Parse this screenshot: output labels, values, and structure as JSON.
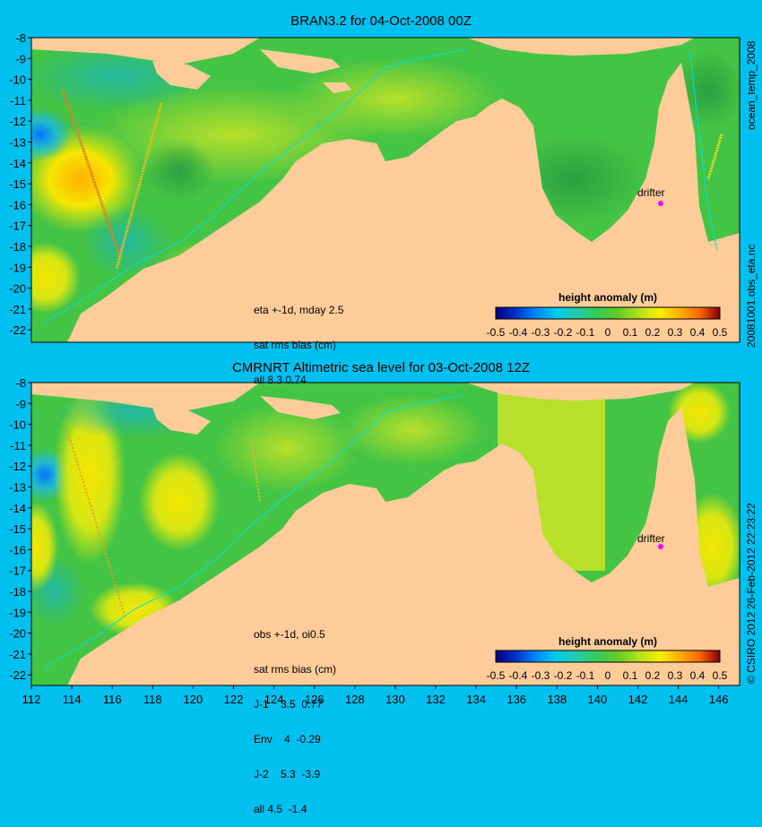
{
  "panels": {
    "top": {
      "title": "BRAN3.2 for 04-Oct-2008 00Z",
      "notes": [
        "eta +-1d, mday 2.5",
        "sat rms bias (cm)",
        "all 8.3 0.74"
      ],
      "drifter_label": "drifter",
      "side_label": "ocean_temp_2008"
    },
    "bottom": {
      "title": "CMRNRT Altimetric sea level  for 03-Oct-2008 12Z",
      "notes": [
        "obs +-1d, oi0.5",
        "sat rms bias (cm)",
        "J-1    3.5  0.77",
        "Env    4  -0.29",
        "J-2    5.3  -3.9",
        "all 4.5  -1.4"
      ],
      "drifter_label": "drifter"
    }
  },
  "side_labels": {
    "top_right": "20081001.obs_eta.nc",
    "bottom_right_a": "26-Feb-2012 22:23:22",
    "bottom_right_b": "© CSIRO 2012"
  },
  "axes": {
    "lat_ticks": [
      "-8",
      "-9",
      "-10",
      "-11",
      "-12",
      "-13",
      "-14",
      "-15",
      "-16",
      "-17",
      "-18",
      "-19",
      "-20",
      "-21",
      "-22"
    ],
    "lon_ticks": [
      "112",
      "114",
      "116",
      "118",
      "120",
      "122",
      "124",
      "126",
      "128",
      "130",
      "132",
      "134",
      "136",
      "138",
      "140",
      "142",
      "144",
      "146"
    ],
    "lat_range": [
      -8,
      -22.4
    ],
    "lon_range": [
      112,
      147
    ]
  },
  "colorbar": {
    "title": "height anomaly (m)",
    "ticks": [
      "-0.5",
      "-0.4",
      "-0.3",
      "-0.2",
      "-0.1",
      "0",
      "0.1",
      "0.2",
      "0.3",
      "0.4",
      "0.5"
    ],
    "colors": [
      "#00007f",
      "#0033cc",
      "#0088ff",
      "#00ccee",
      "#22ccaa",
      "#33cc55",
      "#66cc22",
      "#b5e01a",
      "#f5f000",
      "#ffb000",
      "#ff6600",
      "#d41c00",
      "#7f0000"
    ]
  },
  "colors": {
    "background": "#00c0f0",
    "land": "#fdcc98",
    "sea_base": "#44c444"
  }
}
